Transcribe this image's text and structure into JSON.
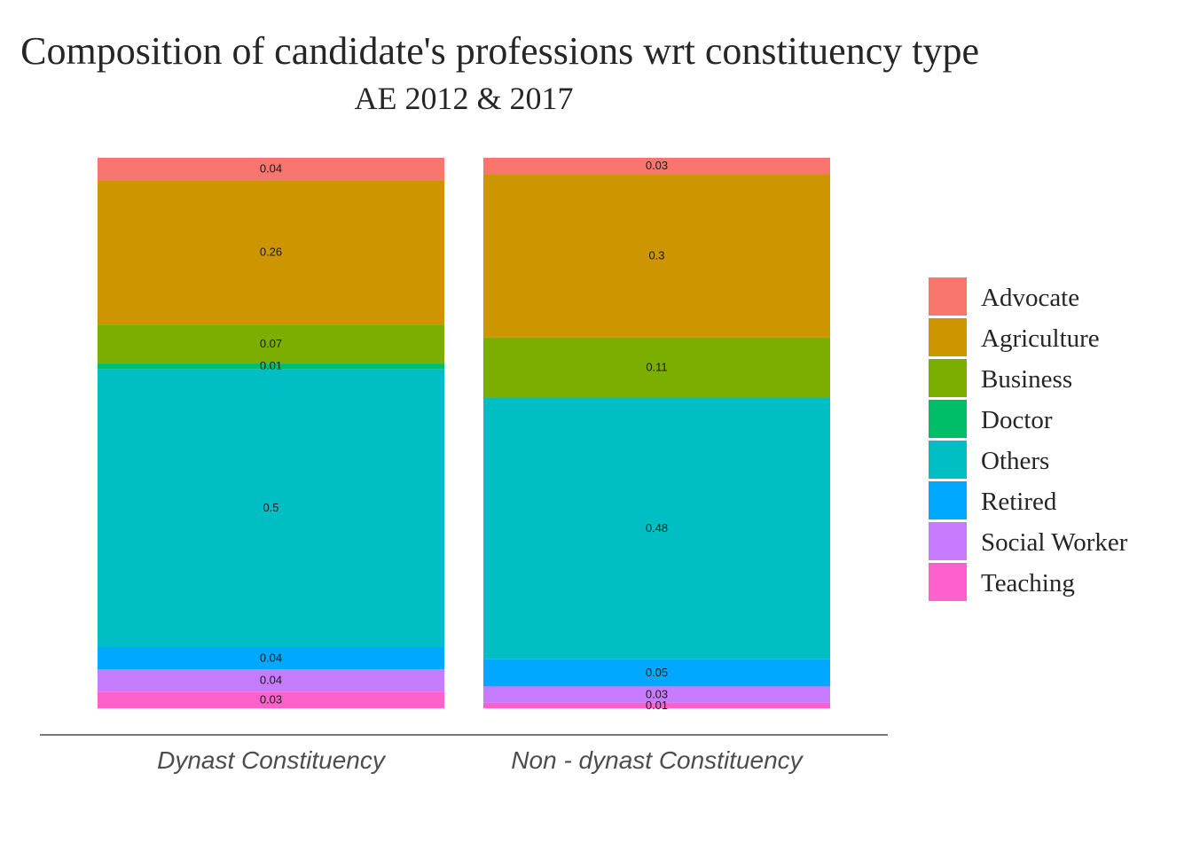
{
  "chart_data": {
    "type": "bar",
    "stacked": true,
    "normalized": true,
    "title": "Composition of candidate's professions wrt constituency type",
    "subtitle": "AE 2012 & 2017",
    "xlabel": "",
    "ylabel": "",
    "categories": [
      "Dynast Constituency",
      "Non - dynast Constituency"
    ],
    "legend_position": "right",
    "grid": false,
    "series": [
      {
        "name": "Advocate",
        "color": "#F8766D",
        "values": [
          0.04,
          0.03
        ]
      },
      {
        "name": "Agriculture",
        "color": "#CD9600",
        "values": [
          0.26,
          0.3
        ]
      },
      {
        "name": "Business",
        "color": "#7CAE00",
        "values": [
          0.07,
          0.11
        ]
      },
      {
        "name": "Doctor",
        "color": "#00BE67",
        "values": [
          0.01,
          0
        ]
      },
      {
        "name": "Others",
        "color": "#00BFC4",
        "values": [
          0.5,
          0.48
        ]
      },
      {
        "name": "Retired",
        "color": "#00A9FF",
        "values": [
          0.04,
          0.05
        ]
      },
      {
        "name": "Social Worker",
        "color": "#C77CFF",
        "values": [
          0.04,
          0.03
        ]
      },
      {
        "name": "Teaching",
        "color": "#FF61CC",
        "values": [
          0.03,
          0.01
        ]
      }
    ]
  }
}
